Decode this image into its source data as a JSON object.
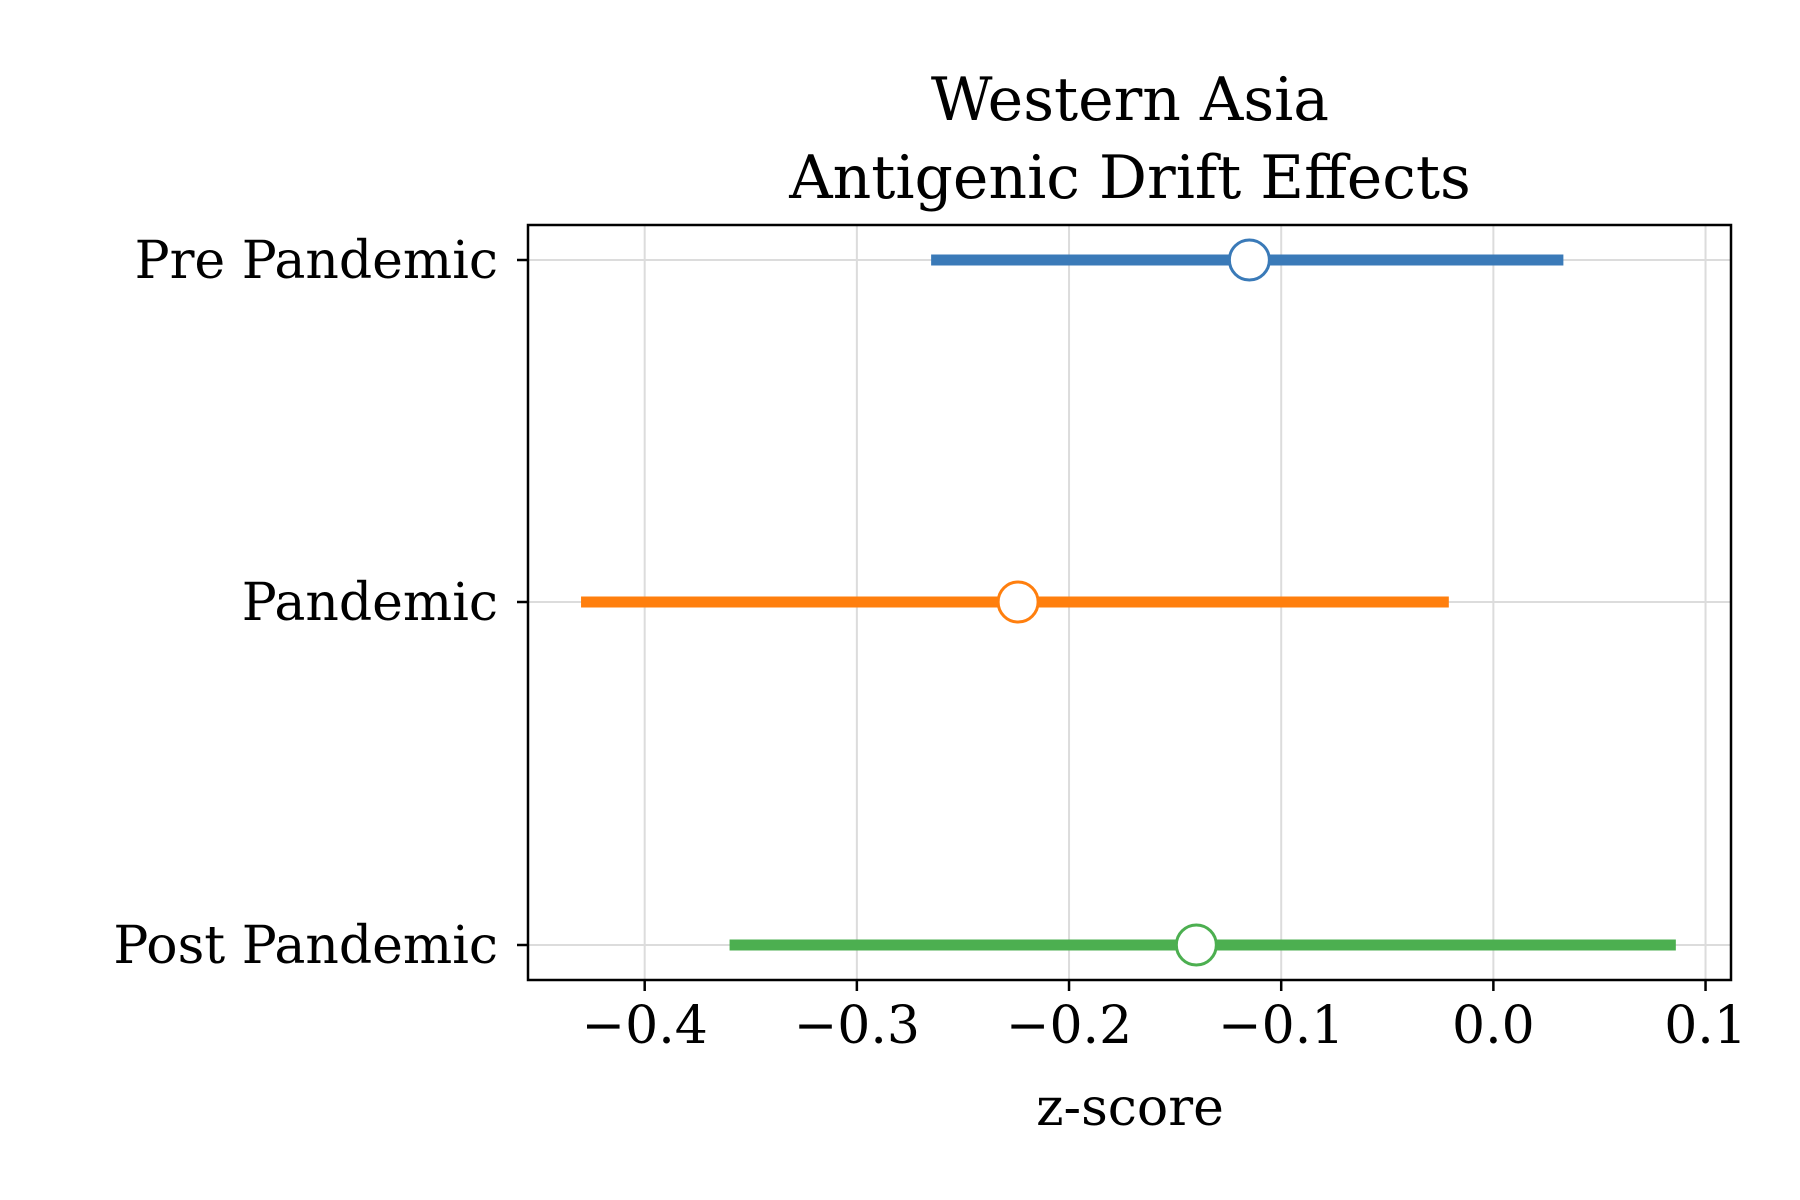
{
  "chart_data": {
    "type": "forest",
    "title_lines": [
      "Western Asia",
      "Antigenic Drift Effects"
    ],
    "xlabel": "z-score",
    "ylabel": "",
    "xlim": [
      -0.455,
      0.112
    ],
    "xticks": [
      -0.4,
      -0.3,
      -0.2,
      -0.1,
      0.0,
      0.1
    ],
    "xtick_labels": [
      "−0.4",
      "−0.3",
      "−0.2",
      "−0.1",
      "0.0",
      "0.1"
    ],
    "grid": true,
    "categories": [
      "Pre Pandemic",
      "Pandemic",
      "Post Pandemic"
    ],
    "series": [
      {
        "category": "Pre Pandemic",
        "estimate": -0.115,
        "ci_low": -0.265,
        "ci_high": 0.033,
        "color": "#3a7ab8"
      },
      {
        "category": "Pandemic",
        "estimate": -0.224,
        "ci_low": -0.43,
        "ci_high": -0.021,
        "color": "#ff7f0e"
      },
      {
        "category": "Post Pandemic",
        "estimate": -0.14,
        "ci_low": -0.36,
        "ci_high": 0.086,
        "color": "#4caf50"
      }
    ]
  }
}
